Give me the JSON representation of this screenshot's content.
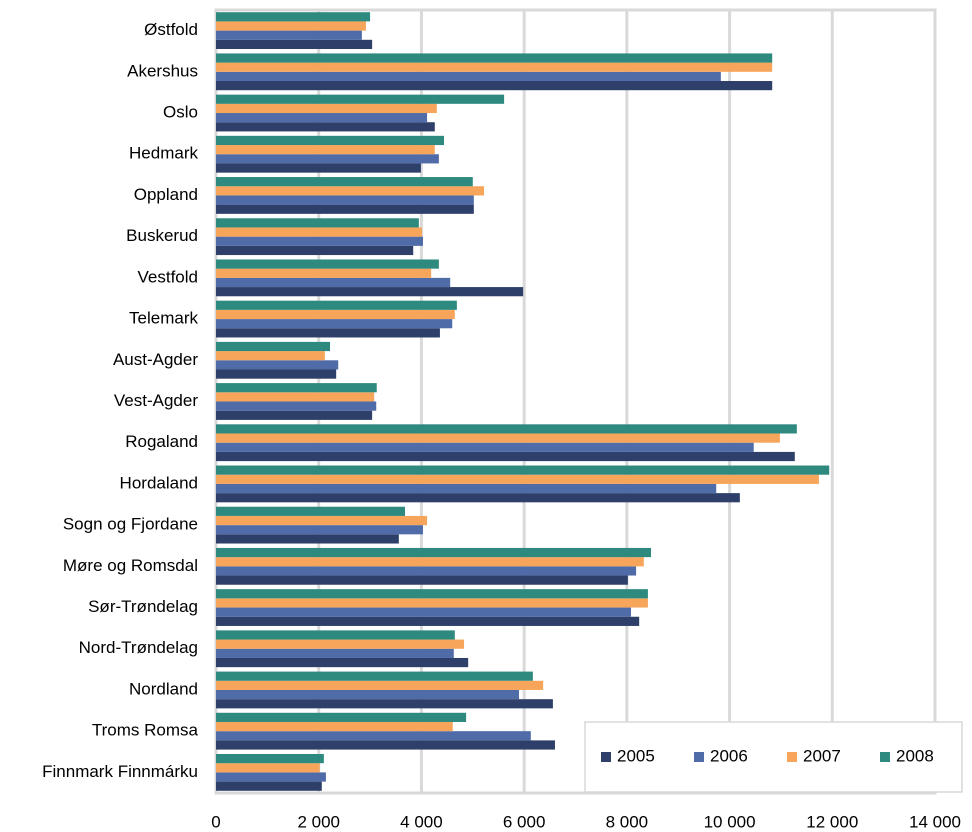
{
  "chart_data": {
    "type": "bar",
    "orientation": "horizontal",
    "categories": [
      "Østfold",
      "Akershus",
      "Oslo",
      "Hedmark",
      "Oppland",
      "Buskerud",
      "Vestfold",
      "Telemark",
      "Aust-Agder",
      "Vest-Agder",
      "Rogaland",
      "Hordaland",
      "Sogn og Fjordane",
      "Møre og Romsdal",
      "Sør-Trøndelag",
      "Nord-Trøndelag",
      "Nordland",
      "Troms Romsa",
      "Finnmark Finnmárku"
    ],
    "series": [
      {
        "name": "2005",
        "color": "#2e3f6a",
        "values": [
          3040,
          10830,
          4260,
          3990,
          5020,
          3840,
          5980,
          4360,
          2340,
          3040,
          11270,
          10200,
          3560,
          8020,
          8240,
          4910,
          6560,
          6600,
          2060
        ]
      },
      {
        "name": "2006",
        "color": "#4f6ba8",
        "values": [
          2840,
          9830,
          4110,
          4340,
          5020,
          4030,
          4560,
          4600,
          2380,
          3120,
          10470,
          9740,
          4030,
          8180,
          8080,
          4630,
          5900,
          6130,
          2140
        ]
      },
      {
        "name": "2007",
        "color": "#f6a55a",
        "values": [
          2920,
          10830,
          4300,
          4260,
          5220,
          4010,
          4190,
          4650,
          2120,
          3080,
          10980,
          11740,
          4110,
          8330,
          8410,
          4830,
          6370,
          4610,
          2020
        ]
      },
      {
        "name": "2008",
        "color": "#2e8a7e",
        "values": [
          3000,
          10830,
          5610,
          4440,
          5000,
          3950,
          4340,
          4690,
          2220,
          3130,
          11310,
          11940,
          3680,
          8470,
          8410,
          4650,
          6170,
          4870,
          2100
        ]
      }
    ],
    "xlim": [
      0,
      14000
    ],
    "xticks": [
      0,
      {
        "value": 2000,
        "label": "2 000"
      },
      {
        "value": 4000,
        "label": "4 000"
      },
      {
        "value": 6000,
        "label": "6 000"
      },
      {
        "value": 8000,
        "label": "8 000"
      },
      {
        "value": 10000,
        "label": "10 000"
      },
      {
        "value": 12000,
        "label": "12 000"
      },
      {
        "value": 14000,
        "label": "14 000"
      }
    ],
    "grid": true,
    "legend": "bottom-right"
  }
}
